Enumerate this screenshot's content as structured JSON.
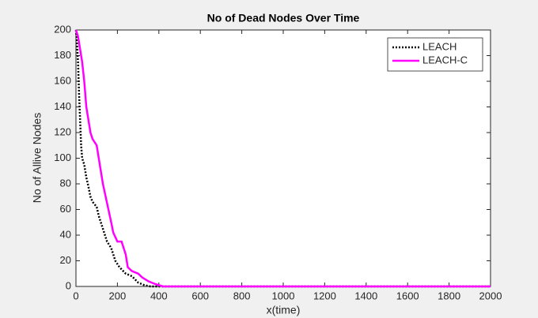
{
  "chart_data": {
    "type": "line",
    "title": "No of Dead Nodes Over Time",
    "x_label": "x(time)",
    "y_label": "No of Allive Nodes",
    "xlim": [
      0,
      2000
    ],
    "xticks": [
      0,
      200,
      400,
      600,
      800,
      1000,
      1200,
      1400,
      1600,
      1800,
      2000
    ],
    "ylim": [
      0,
      200
    ],
    "yticks": [
      0,
      20,
      40,
      60,
      80,
      100,
      120,
      140,
      160,
      180,
      200
    ],
    "grid": false,
    "legend": "top-right",
    "series": [
      {
        "name": "LEACH",
        "color": "#000000",
        "style": "dotted",
        "x": [
          0,
          5,
          10,
          15,
          20,
          25,
          30,
          40,
          50,
          60,
          70,
          80,
          100,
          110,
          130,
          150,
          170,
          190,
          210,
          240,
          270,
          300,
          330,
          360,
          2000
        ],
        "values": [
          200,
          190,
          175,
          150,
          130,
          110,
          100,
          95,
          85,
          78,
          70,
          66,
          62,
          55,
          45,
          35,
          30,
          20,
          15,
          10,
          8,
          3,
          1,
          0,
          0
        ]
      },
      {
        "name": "LEACH-C",
        "color": "#ff00ff",
        "style": "solid",
        "x": [
          0,
          10,
          20,
          30,
          40,
          50,
          60,
          70,
          80,
          100,
          110,
          130,
          150,
          170,
          180,
          200,
          220,
          240,
          250,
          270,
          300,
          320,
          350,
          380,
          400,
          420,
          2000
        ],
        "values": [
          200,
          195,
          185,
          175,
          160,
          140,
          130,
          120,
          115,
          110,
          100,
          80,
          65,
          50,
          42,
          35,
          35,
          25,
          15,
          12,
          10,
          7,
          4,
          2,
          1,
          0,
          0
        ]
      }
    ]
  }
}
